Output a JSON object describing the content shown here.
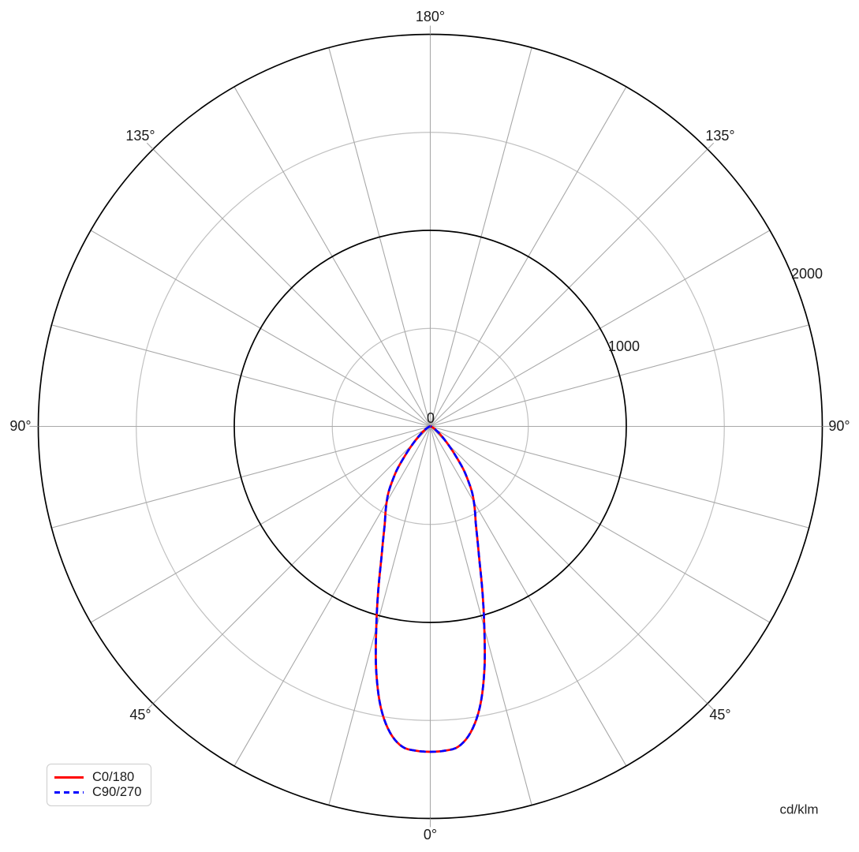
{
  "unit_label": "cd/klm",
  "chart_data": {
    "type": "line",
    "projection": "polar-photometric",
    "units": "cd/klm",
    "grid": true,
    "legend_position": "bottom-left",
    "angle_axis": {
      "zero_position": "bottom",
      "grid_step_degrees": 15,
      "labeled_degrees": [
        0,
        45,
        90,
        135,
        180
      ],
      "labels": {
        "top": "180°",
        "upper_left": "135°",
        "upper_right": "135°",
        "left": "90°",
        "right": "90°",
        "lower_left": "45°",
        "lower_right": "45°",
        "bottom": "0°"
      }
    },
    "r_axis": {
      "min": 0,
      "max": 2000,
      "circle_step": 500,
      "major_circles": [
        1000,
        2000
      ],
      "minor_circles": [
        500,
        1500
      ],
      "labeled_values": [
        0,
        1000,
        2000
      ],
      "tick_labels": {
        "zero": "0",
        "one_thousand": "1000",
        "two_thousand": "2000"
      }
    },
    "colors": {
      "major_circle": "#000000",
      "minor_circle": "#c1c1c1",
      "radial_line": "#a8a8a8",
      "series_c0": "#ff0000",
      "series_c90": "#0000ff"
    },
    "series": [
      {
        "name": "C0/180",
        "color": "#ff0000",
        "line_style": "solid",
        "symmetric": true,
        "points_deg_cdklm": [
          [
            0,
            1660
          ],
          [
            2.5,
            1656
          ],
          [
            5,
            1640
          ],
          [
            7.5,
            1575
          ],
          [
            10,
            1455
          ],
          [
            12.5,
            1275
          ],
          [
            15,
            1065
          ],
          [
            17.5,
            885
          ],
          [
            20,
            735
          ],
          [
            22.5,
            630
          ],
          [
            25,
            550
          ],
          [
            27.5,
            495
          ],
          [
            30,
            445
          ],
          [
            32.5,
            395
          ],
          [
            35,
            335
          ],
          [
            37.5,
            280
          ],
          [
            40,
            215
          ],
          [
            42.5,
            165
          ],
          [
            45,
            125
          ],
          [
            47.5,
            95
          ],
          [
            50,
            72
          ],
          [
            55,
            42
          ],
          [
            60,
            25
          ],
          [
            65,
            15
          ],
          [
            70,
            9
          ],
          [
            75,
            6
          ],
          [
            80,
            4
          ],
          [
            85,
            3
          ],
          [
            90,
            2
          ]
        ]
      },
      {
        "name": "C90/270",
        "color": "#0000ff",
        "line_style": "dashed",
        "symmetric": true,
        "points_deg_cdklm": [
          [
            0,
            1660
          ],
          [
            2.5,
            1656
          ],
          [
            5,
            1640
          ],
          [
            7.5,
            1575
          ],
          [
            10,
            1455
          ],
          [
            12.5,
            1275
          ],
          [
            15,
            1065
          ],
          [
            17.5,
            885
          ],
          [
            20,
            735
          ],
          [
            22.5,
            630
          ],
          [
            25,
            550
          ],
          [
            27.5,
            495
          ],
          [
            30,
            445
          ],
          [
            32.5,
            395
          ],
          [
            35,
            335
          ],
          [
            37.5,
            280
          ],
          [
            40,
            215
          ],
          [
            42.5,
            165
          ],
          [
            45,
            125
          ],
          [
            47.5,
            95
          ],
          [
            50,
            72
          ],
          [
            55,
            42
          ],
          [
            60,
            25
          ],
          [
            65,
            15
          ],
          [
            70,
            9
          ],
          [
            75,
            6
          ],
          [
            80,
            4
          ],
          [
            85,
            3
          ],
          [
            90,
            2
          ]
        ]
      }
    ]
  }
}
